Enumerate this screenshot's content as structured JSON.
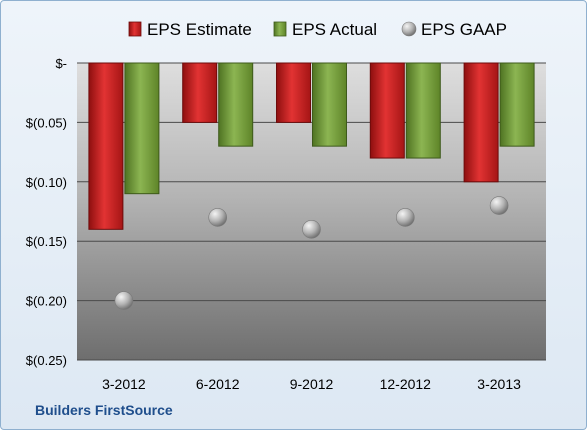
{
  "company_label": "Builders FirstSource",
  "chart_data": {
    "type": "bar",
    "categories": [
      "3-2012",
      "6-2012",
      "9-2012",
      "12-2012",
      "3-2013"
    ],
    "series": [
      {
        "name": "EPS Estimate",
        "kind": "bar",
        "color": "#cc1f1f",
        "values": [
          -0.14,
          -0.05,
          -0.05,
          -0.08,
          -0.1
        ]
      },
      {
        "name": "EPS Actual",
        "kind": "bar",
        "color": "#6f9a33",
        "values": [
          -0.11,
          -0.07,
          -0.07,
          -0.08,
          -0.07
        ]
      },
      {
        "name": "EPS GAAP",
        "kind": "marker",
        "color": "#a9a9a9",
        "values": [
          -0.2,
          -0.13,
          -0.14,
          -0.13,
          -0.12
        ]
      }
    ],
    "ylim": [
      -0.25,
      0
    ],
    "yticks": [
      0,
      -0.05,
      -0.1,
      -0.15,
      -0.2,
      -0.25
    ],
    "ytick_labels": [
      "$-",
      "$(0.05)",
      "$(0.10)",
      "$(0.15)",
      "$(0.20)",
      "$(0.25)"
    ],
    "grid": true,
    "legend_position": "top"
  }
}
